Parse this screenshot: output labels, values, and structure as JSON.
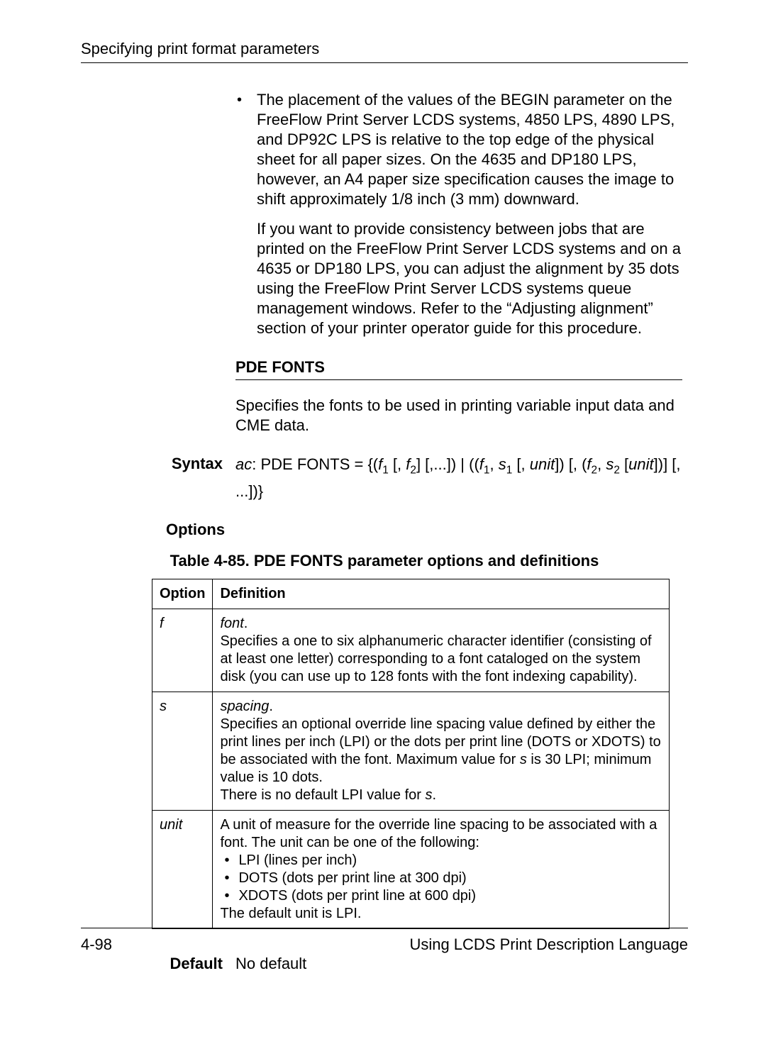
{
  "header": {
    "title": "Specifying print format parameters"
  },
  "bullet1": {
    "text": "The placement of the values of the BEGIN parameter on the FreeFlow Print Server LCDS systems, 4850 LPS, 4890 LPS, and DP92C LPS is relative to the top edge of the physical sheet for all paper sizes. On the 4635 and DP180 LPS, however, an A4 paper size specification causes the image to shift approximately 1/8 inch (3 mm) downward."
  },
  "bullet1b": {
    "text": "If you want to provide consistency between jobs that are printed on the FreeFlow Print Server LCDS systems and on a 4635 or DP180 LPS, you can adjust the alignment by 35 dots using the FreeFlow Print Server LCDS systems queue management windows. Refer to the “Adjusting alignment” section of your printer operator guide for this procedure."
  },
  "section": {
    "heading": "PDE FONTS"
  },
  "intro": {
    "text": "Specifies the fonts to be used in printing variable input data and CME data."
  },
  "syntax": {
    "label": "Syntax",
    "ac": "ac",
    "prefix": ": PDE FONTS = {(",
    "f": "f",
    "s": "s",
    "unit": "unit",
    "tail": "[, ...])}"
  },
  "options": {
    "label": "Options",
    "caption": "Table 4-85. PDE FONTS parameter options and definitions",
    "headers": {
      "option": "Option",
      "definition": "Definition"
    },
    "rows": {
      "f": {
        "opt": "f",
        "term": "font",
        "body": "Specifies a one to six alphanumeric character identifier (consisting of at least one letter) corresponding to a font cataloged on the system disk (you can use up to 128 fonts with the font indexing capability)."
      },
      "s": {
        "opt": "s",
        "term": "spacing",
        "body1": "Specifies an optional override line spacing value defined by either the print lines per inch (LPI) or the dots per print line (DOTS or XDOTS) to be associated with the font. Maximum value for ",
        "svar": "s",
        "body2": " is 30 LPI; minimum value is 10 dots.",
        "body3a": "There is no default LPI value for ",
        "body3b": "."
      },
      "unit": {
        "opt": "unit",
        "lead": "A unit of measure for the override line spacing to be associated with a font. The unit can be one of the following:",
        "b1": "LPI (lines per inch)",
        "b2": "DOTS (dots per print line at 300 dpi)",
        "b3": "XDOTS (dots per print line at 600 dpi)",
        "tail": "The default unit is LPI."
      }
    }
  },
  "default": {
    "label": "Default",
    "value": "No default"
  },
  "footer": {
    "page": "4-98",
    "title": "Using LCDS Print Description Language"
  }
}
